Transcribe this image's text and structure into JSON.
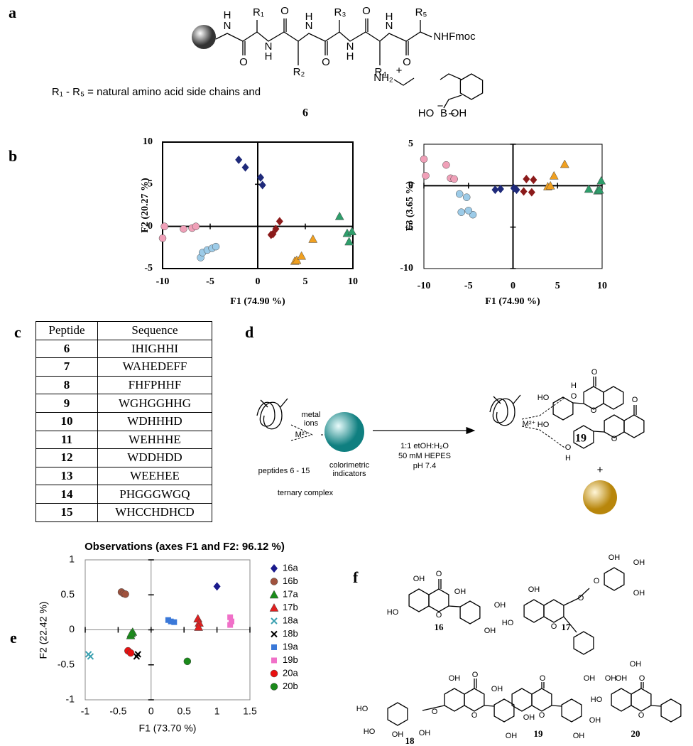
{
  "panel_labels": [
    "a",
    "b",
    "c",
    "d",
    "e",
    "f"
  ],
  "panel_a": {
    "atoms": [
      "H",
      "N",
      "R₁",
      "O",
      "N",
      "H",
      "O",
      "R₂",
      "H",
      "N",
      "R₃",
      "O",
      "N",
      "H",
      "O",
      "R₄",
      "H",
      "N",
      "R₅",
      "O",
      "NHFmoc"
    ],
    "caption": "R₁ - R₅ = natural amino acid side chains and",
    "side_chain_atoms": [
      "+",
      "NH₂",
      "−",
      "HO",
      "B",
      "OH"
    ],
    "compound": "6"
  },
  "chart_data": [
    {
      "type": "scatter",
      "x_label": "F1 (74.90 %)",
      "y_label": "F2 (20.27 %)",
      "xlim": [
        -10,
        10
      ],
      "ylim": [
        -5,
        10
      ],
      "xticks": [
        -10,
        -5,
        0,
        5,
        10
      ],
      "yticks": [
        -5,
        0,
        5,
        10
      ],
      "frame": true,
      "zero_axes": true,
      "series": [
        {
          "color": "#1f2a7a",
          "marker": "diamond",
          "x": [
            -2,
            -1.3,
            0.3,
            0.5
          ],
          "values": [
            7.9,
            7,
            5.8,
            4.9
          ]
        },
        {
          "color": "#8b1a1a",
          "marker": "diamond",
          "x": [
            1.4,
            1.6,
            1.9,
            2.3
          ],
          "values": [
            -1,
            -0.9,
            -0.3,
            0.6
          ]
        },
        {
          "color": "#f0a020",
          "marker": "triangle",
          "x": [
            3.9,
            4.1,
            4.6,
            5.8
          ],
          "values": [
            -4.1,
            -4,
            -3.5,
            -1.5
          ]
        },
        {
          "color": "#2e9e6b",
          "marker": "triangle",
          "x": [
            8.6,
            9.4,
            9.6,
            9.9
          ],
          "values": [
            1.2,
            -0.8,
            -1.8,
            -0.6
          ]
        },
        {
          "color": "#f0a0b8",
          "marker": "circle",
          "x": [
            -10,
            -9.8,
            -7.8,
            -6.9,
            -6.5
          ],
          "values": [
            -1.4,
            0,
            -0.3,
            -0.2,
            0
          ]
        },
        {
          "color": "#9ccbe8",
          "marker": "circle",
          "x": [
            -6,
            -5.8,
            -5.3,
            -4.8,
            -4.4
          ],
          "values": [
            -3.7,
            -3.1,
            -2.8,
            -2.6,
            -2.4
          ]
        }
      ]
    },
    {
      "type": "scatter",
      "x_label": "F1 (74.90 %)",
      "y_label": "F3 (3.65 %)",
      "xlim": [
        -10,
        10
      ],
      "ylim": [
        -10,
        5
      ],
      "xticks": [
        -10,
        -5,
        0,
        5,
        10
      ],
      "yticks": [
        -10,
        -5,
        0,
        5
      ],
      "frame": true,
      "zero_axes": true,
      "series": [
        {
          "color": "#1f2a7a",
          "marker": "diamond",
          "x": [
            -2,
            -1.4,
            0.1,
            0.4
          ],
          "values": [
            -0.5,
            -0.4,
            -0.3,
            -0.5
          ]
        },
        {
          "color": "#8b1a1a",
          "marker": "diamond",
          "x": [
            1.2,
            1.5,
            2.1,
            2.3
          ],
          "values": [
            -0.7,
            0.8,
            -0.8,
            0.7
          ]
        },
        {
          "color": "#f0a020",
          "marker": "triangle",
          "x": [
            3.9,
            4.2,
            4.6,
            5.8
          ],
          "values": [
            -0.1,
            0,
            1.2,
            2.6
          ]
        },
        {
          "color": "#2e9e6b",
          "marker": "triangle",
          "x": [
            8.5,
            9.5,
            9.7,
            9.9
          ],
          "values": [
            -0.4,
            -0.6,
            -0.5,
            0.6
          ]
        },
        {
          "color": "#f0a0b8",
          "marker": "circle",
          "x": [
            -10,
            -9.8,
            -7.5,
            -7,
            -6.6
          ],
          "values": [
            3.2,
            1.2,
            2.5,
            0.9,
            0.8
          ]
        },
        {
          "color": "#9ccbe8",
          "marker": "circle",
          "x": [
            -6,
            -5.2,
            -5.8,
            -4.5,
            -5
          ],
          "values": [
            -1,
            -1.4,
            -3.2,
            -3.5,
            -3
          ]
        }
      ]
    },
    {
      "type": "scatter",
      "title": "Observations (axes F1 and F2: 96.12 %)",
      "x_label": "F1 (73.70 %)",
      "y_label": "F2 (22.42 %)",
      "xlim": [
        -1,
        1.5
      ],
      "ylim": [
        -1,
        1
      ],
      "xticks": [
        -1,
        -0.5,
        0,
        0.5,
        1,
        1.5
      ],
      "yticks": [
        -1,
        -0.5,
        0,
        0.5,
        1
      ],
      "frame": true,
      "zero_axes": true,
      "legend": "right",
      "series": [
        {
          "name": "16a",
          "color": "#1a1a8c",
          "marker": "diamond",
          "x": [
            1
          ],
          "values": [
            0.62
          ]
        },
        {
          "name": "16b",
          "color": "#a0523d",
          "marker": "circle",
          "x": [
            -0.45,
            -0.42,
            -0.39
          ],
          "values": [
            0.54,
            0.52,
            0.51
          ]
        },
        {
          "name": "17a",
          "color": "#1a8c1a",
          "marker": "triangle",
          "x": [
            -0.31,
            -0.28,
            -0.3
          ],
          "values": [
            -0.08,
            -0.03,
            -0.05
          ]
        },
        {
          "name": "17b",
          "color": "#e02020",
          "marker": "triangle",
          "x": [
            0.71,
            0.73,
            0.72
          ],
          "values": [
            0.16,
            0.1,
            0.04
          ]
        },
        {
          "name": "18a",
          "color": "#3aa0b0",
          "marker": "x",
          "x": [
            -0.95,
            -0.92
          ],
          "values": [
            -0.35,
            -0.38
          ]
        },
        {
          "name": "18b",
          "color": "#000000",
          "marker": "x",
          "x": [
            -0.22,
            -0.2
          ],
          "values": [
            -0.38,
            -0.35
          ]
        },
        {
          "name": "19a",
          "color": "#3a78d8",
          "marker": "square",
          "x": [
            0.26,
            0.3,
            0.35
          ],
          "values": [
            0.14,
            0.12,
            0.11
          ]
        },
        {
          "name": "19b",
          "color": "#f070c8",
          "marker": "square",
          "x": [
            1.2,
            1.22,
            1.2
          ],
          "values": [
            0.18,
            0.12,
            0.07
          ]
        },
        {
          "name": "20a",
          "color": "#e81010",
          "marker": "circle",
          "x": [
            -0.35,
            -0.31
          ],
          "values": [
            -0.3,
            -0.33
          ]
        },
        {
          "name": "20b",
          "color": "#1a8a1a",
          "marker": "circle",
          "x": [
            0.55
          ],
          "values": [
            -0.45
          ]
        }
      ]
    }
  ],
  "table": {
    "header": [
      "Peptide",
      "Sequence"
    ],
    "rows": [
      [
        "6",
        "IHIGHHI"
      ],
      [
        "7",
        "WAHEDEFF"
      ],
      [
        "8",
        "FHFPHHF"
      ],
      [
        "9",
        "WGHGGHHG"
      ],
      [
        "10",
        "WDHHHD"
      ],
      [
        "11",
        "WEHHHE"
      ],
      [
        "12",
        "WDDHDD"
      ],
      [
        "13",
        "WEEHEE"
      ],
      [
        "14",
        "PHGGGWGQ"
      ],
      [
        "15",
        "WHCCHDHCD"
      ]
    ]
  },
  "panel_d": {
    "texts": [
      "metal",
      "ions",
      "M²⁺",
      "peptides 6 - 15",
      "colorimetric",
      "indicators",
      "ternary complex",
      "HO",
      "HO",
      "O",
      "O",
      "19",
      "1:1 etOH:H₂O",
      "50 mM HEPES",
      "pH 7.4",
      "H",
      "O",
      "M²⁺",
      "O",
      "H",
      "O",
      "O",
      "+"
    ]
  },
  "panel_f": {
    "compounds": [
      {
        "number": "16",
        "labels": [
          "OH",
          "O",
          "OH",
          "HO",
          "O",
          "OH",
          "OH"
        ]
      },
      {
        "number": "17",
        "labels": [
          "OH",
          "HO",
          "O",
          "O",
          "O",
          "OH",
          "OH",
          "OH",
          "OH",
          "OH",
          "OH"
        ]
      },
      {
        "number": "18",
        "labels": [
          "OH",
          "O",
          "OH",
          "O",
          "O",
          "HO",
          "HO",
          "OH",
          "OH",
          "OH",
          "OH"
        ]
      },
      {
        "number": "19",
        "labels": [
          "O",
          "O",
          "OH",
          "OH"
        ]
      },
      {
        "number": "20",
        "labels": [
          "HO",
          "OH",
          "O",
          "O"
        ]
      }
    ]
  }
}
